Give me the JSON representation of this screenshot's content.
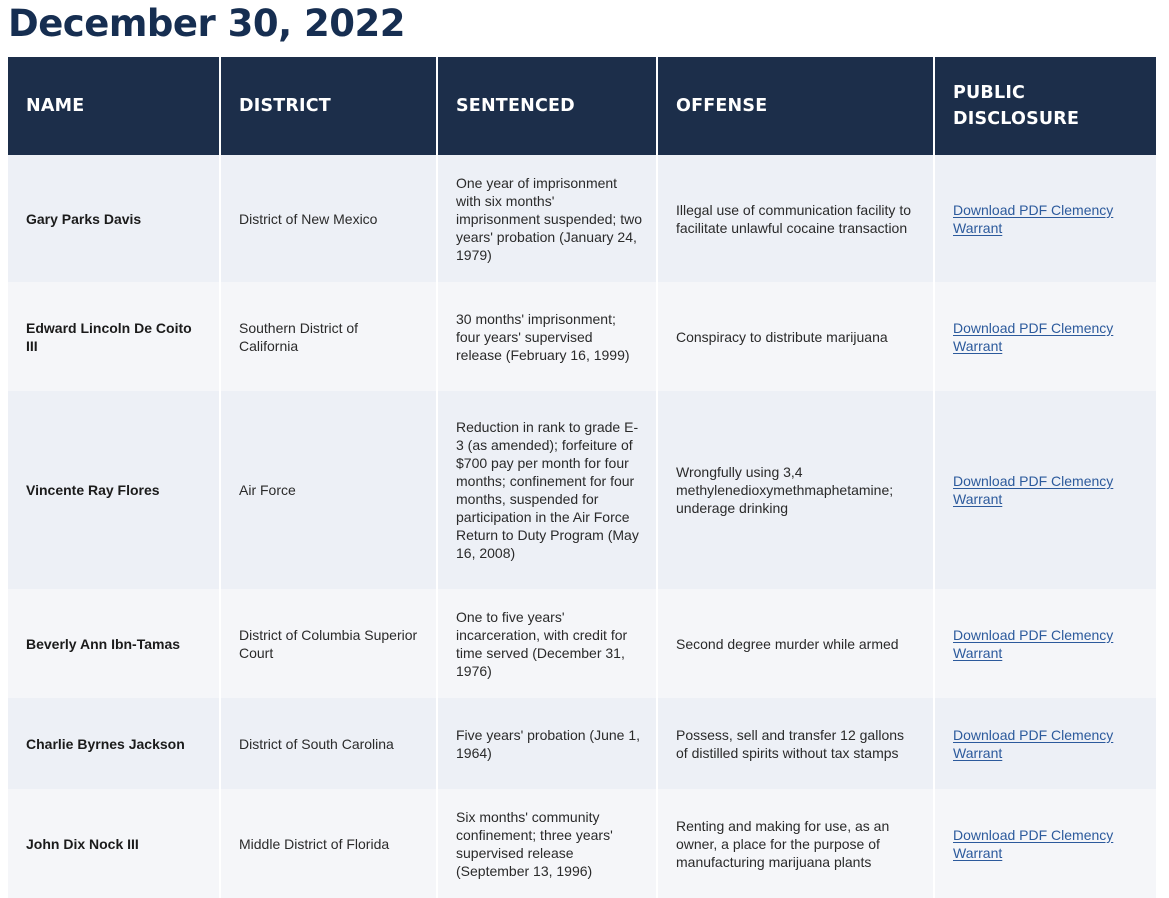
{
  "page": {
    "title": "December 30, 2022"
  },
  "table": {
    "headers": {
      "name": "NAME",
      "district": "DISTRICT",
      "sentenced": "SENTENCED",
      "offense": "OFFENSE",
      "disclosure": "PUBLIC DISCLOSURE"
    },
    "rows": [
      {
        "name": "Gary Parks Davis",
        "district": "District of New Mexico",
        "sentenced": "One year of imprisonment with six months' imprisonment suspended; two years' probation (January 24, 1979)",
        "offense": "Illegal use of communication facility to facilitate unlawful cocaine transaction",
        "disclosure": "Download PDF Clemency Warrant"
      },
      {
        "name": "Edward Lincoln De Coito III",
        "district": "Southern District of California",
        "sentenced": "30 months' imprisonment; four years' supervised release (February 16, 1999)",
        "offense": "Conspiracy to distribute marijuana",
        "disclosure": "Download PDF Clemency Warrant"
      },
      {
        "name": "Vincente Ray Flores",
        "district": "Air Force",
        "sentenced": "Reduction in rank to grade E-3 (as amended); forfeiture of $700 pay per month for four months; confinement for four months, suspended for participation in the Air Force Return to Duty Program (May 16, 2008)",
        "offense": "Wrongfully using 3,4 methylenedioxymethmaphetamine; underage drinking",
        "disclosure": "Download PDF Clemency Warrant"
      },
      {
        "name": "Beverly Ann Ibn-Tamas",
        "district": "District of Columbia Superior Court",
        "sentenced": "One to five years' incarceration, with credit for time served (December 31, 1976)",
        "offense": "Second degree murder while armed",
        "disclosure": "Download PDF Clemency Warrant"
      },
      {
        "name": "Charlie Byrnes Jackson",
        "district": "District of South Carolina",
        "sentenced": "Five years' probation (June 1, 1964)",
        "offense": "Possess, sell and transfer 12 gallons of distilled spirits without tax stamps",
        "disclosure": "Download PDF Clemency Warrant"
      },
      {
        "name": "John Dix Nock III",
        "district": "Middle District of Florida",
        "sentenced": "Six months' community confinement; three years' supervised release (September 13, 1996)",
        "offense": "Renting and making for use, as an owner, a place for the purpose of manufacturing marijuana plants",
        "disclosure": "Download PDF Clemency Warrant"
      }
    ]
  }
}
